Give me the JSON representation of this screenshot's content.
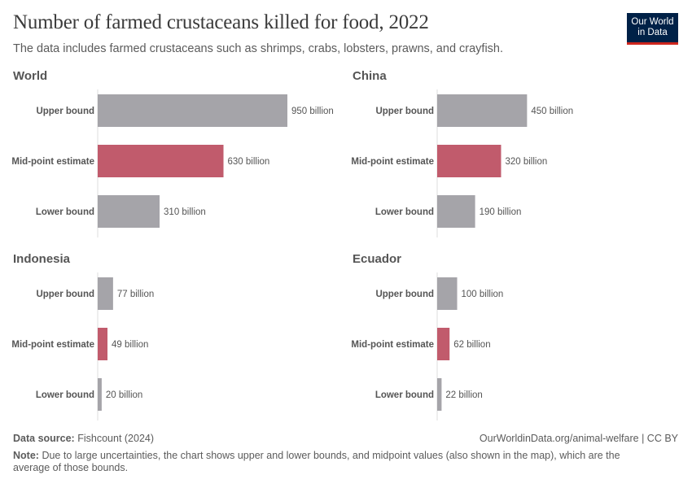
{
  "header": {
    "title": "Number of farmed crustaceans killed for food, 2022",
    "subtitle": "The data includes farmed crustaceans such as shrimps, crabs, lobsters, prawns, and crayfish.",
    "logo_text": [
      "Our World",
      "in Data"
    ]
  },
  "chart_data": {
    "type": "bar",
    "orientation": "horizontal",
    "facets": true,
    "categories": [
      "Upper bound",
      "Mid-point estimate",
      "Lower bound"
    ],
    "unit": "billion",
    "colors": {
      "bound": "#a5a4a9",
      "midpoint": "#c15b6c"
    },
    "panels": [
      {
        "name": "World",
        "values": [
          950,
          630,
          310
        ],
        "labels": [
          "950 billion",
          "630 billion",
          "310 billion"
        ]
      },
      {
        "name": "China",
        "values": [
          450,
          320,
          190
        ],
        "labels": [
          "450 billion",
          "320 billion",
          "190 billion"
        ]
      },
      {
        "name": "Indonesia",
        "values": [
          77,
          49,
          20
        ],
        "labels": [
          "77 billion",
          "49 billion",
          "20 billion"
        ]
      },
      {
        "name": "Ecuador",
        "values": [
          100,
          62,
          22
        ],
        "labels": [
          "100 billion",
          "62 billion",
          "22 billion"
        ]
      }
    ]
  },
  "footer": {
    "source_label": "Data source:",
    "source": "Fishcount (2024)",
    "url": "OurWorldinData.org/animal-welfare | CC BY",
    "note_label": "Note:",
    "note": "Due to large uncertainties, the chart shows upper and lower bounds, and midpoint values (also shown in the map), which are the average of those bounds."
  }
}
